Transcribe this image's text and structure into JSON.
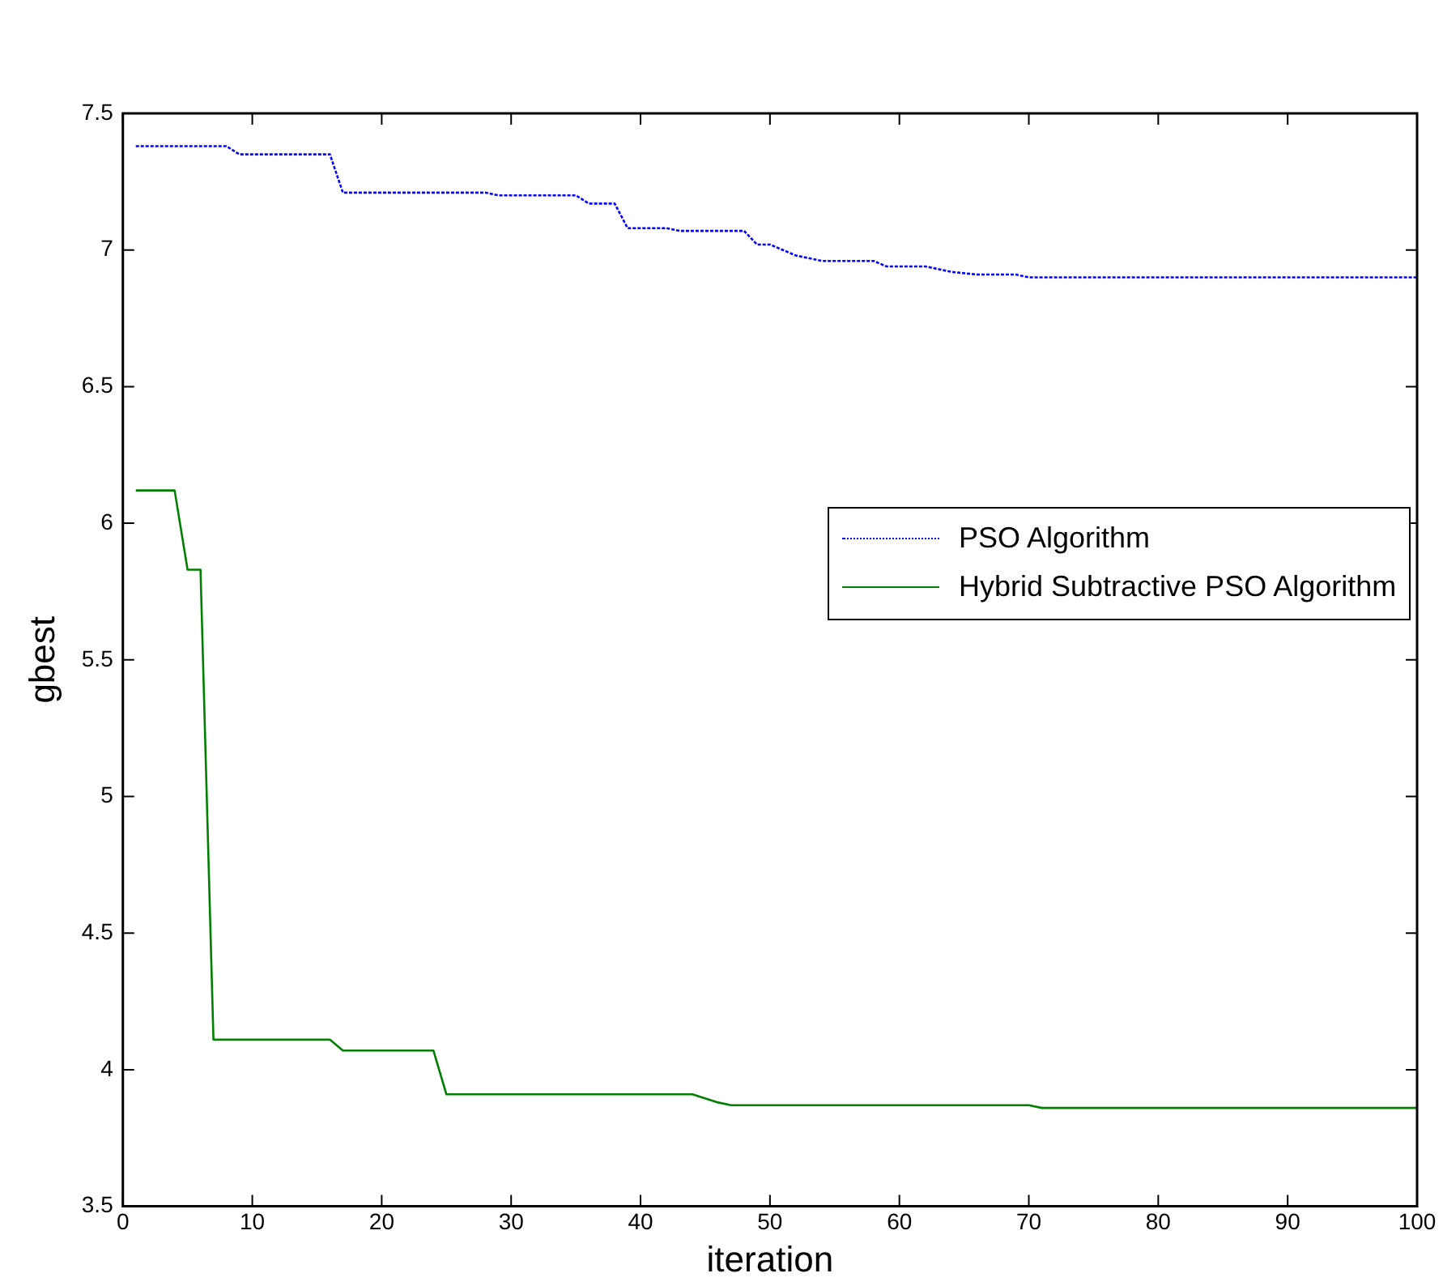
{
  "chart_data": {
    "type": "line",
    "xlabel": "iteration",
    "ylabel": "gbest",
    "xlim": [
      0,
      100
    ],
    "ylim": [
      3.5,
      7.5
    ],
    "xticks": [
      0,
      10,
      20,
      30,
      40,
      50,
      60,
      70,
      80,
      90,
      100
    ],
    "yticks": [
      3.5,
      4,
      4.5,
      5,
      5.5,
      6,
      6.5,
      7,
      7.5
    ],
    "grid": false,
    "legend": "right",
    "marker": "none",
    "series": [
      {
        "name": "PSO Algorithm",
        "color": "#0000ff",
        "line_style": "dotted",
        "x": [
          1,
          8,
          9,
          16,
          17,
          28,
          29,
          35,
          36,
          38,
          39,
          42,
          43,
          48,
          49,
          50,
          52,
          54,
          58,
          59,
          62,
          64,
          66,
          69,
          70,
          100
        ],
        "values": [
          7.38,
          7.38,
          7.35,
          7.35,
          7.21,
          7.21,
          7.2,
          7.2,
          7.17,
          7.17,
          7.08,
          7.08,
          7.07,
          7.07,
          7.02,
          7.02,
          6.98,
          6.96,
          6.96,
          6.94,
          6.94,
          6.92,
          6.91,
          6.91,
          6.9,
          6.9
        ]
      },
      {
        "name": "Hybrid Subtractive PSO Algorithm",
        "color": "#008000",
        "line_style": "solid",
        "x": [
          1,
          4,
          5,
          6,
          7,
          16,
          17,
          24,
          25,
          44,
          46,
          47,
          70,
          71,
          100
        ],
        "values": [
          6.12,
          6.12,
          5.83,
          5.83,
          4.11,
          4.11,
          4.07,
          4.07,
          3.91,
          3.91,
          3.88,
          3.87,
          3.87,
          3.86,
          3.86
        ]
      }
    ]
  }
}
